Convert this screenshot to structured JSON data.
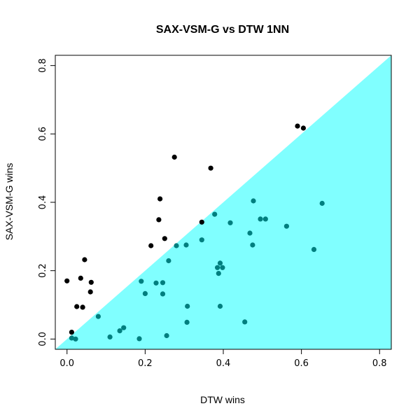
{
  "chart_data": {
    "type": "scatter",
    "title": "SAX-VSM-G vs DTW 1NN",
    "xlabel": "DTW wins",
    "ylabel": "SAX-VSM-G wins",
    "xlim": [
      -0.03,
      0.83
    ],
    "ylim": [
      -0.03,
      0.83
    ],
    "xticks": [
      "0.0",
      "0.2",
      "0.4",
      "0.6",
      "0.8"
    ],
    "yticks": [
      "0.0",
      "0.2",
      "0.4",
      "0.6",
      "0.8"
    ],
    "grid": false,
    "legend": "none",
    "fill_region": {
      "description": "area below the diagonal y = x",
      "color": "#80FFFF"
    },
    "series": [
      {
        "color": "#000000",
        "points": [
          [
            0.0,
            0.17
          ],
          [
            0.012,
            0.02
          ],
          [
            0.025,
            0.095
          ],
          [
            0.035,
            0.178
          ],
          [
            0.04,
            0.093
          ],
          [
            0.045,
            0.232
          ],
          [
            0.06,
            0.138
          ],
          [
            0.062,
            0.166
          ],
          [
            0.215,
            0.273
          ],
          [
            0.235,
            0.349
          ],
          [
            0.238,
            0.41
          ],
          [
            0.25,
            0.294
          ],
          [
            0.275,
            0.532
          ],
          [
            0.345,
            0.342
          ],
          [
            0.368,
            0.5
          ],
          [
            0.59,
            0.623
          ],
          [
            0.605,
            0.617
          ]
        ]
      },
      {
        "color": "#007F7F",
        "points": [
          [
            0.012,
            0.003
          ],
          [
            0.022,
            0.0
          ],
          [
            0.08,
            0.066
          ],
          [
            0.11,
            0.006
          ],
          [
            0.135,
            0.024
          ],
          [
            0.145,
            0.033
          ],
          [
            0.185,
            0.001
          ],
          [
            0.19,
            0.169
          ],
          [
            0.2,
            0.133
          ],
          [
            0.228,
            0.164
          ],
          [
            0.245,
            0.165
          ],
          [
            0.245,
            0.132
          ],
          [
            0.255,
            0.01
          ],
          [
            0.26,
            0.229
          ],
          [
            0.28,
            0.273
          ],
          [
            0.305,
            0.275
          ],
          [
            0.307,
            0.049
          ],
          [
            0.308,
            0.096
          ],
          [
            0.345,
            0.29
          ],
          [
            0.378,
            0.365
          ],
          [
            0.385,
            0.209
          ],
          [
            0.388,
            0.192
          ],
          [
            0.392,
            0.222
          ],
          [
            0.392,
            0.096
          ],
          [
            0.398,
            0.209
          ],
          [
            0.418,
            0.34
          ],
          [
            0.455,
            0.05
          ],
          [
            0.468,
            0.31
          ],
          [
            0.475,
            0.275
          ],
          [
            0.477,
            0.404
          ],
          [
            0.495,
            0.351
          ],
          [
            0.508,
            0.351
          ],
          [
            0.562,
            0.33
          ],
          [
            0.632,
            0.262
          ],
          [
            0.653,
            0.397
          ]
        ]
      }
    ]
  }
}
